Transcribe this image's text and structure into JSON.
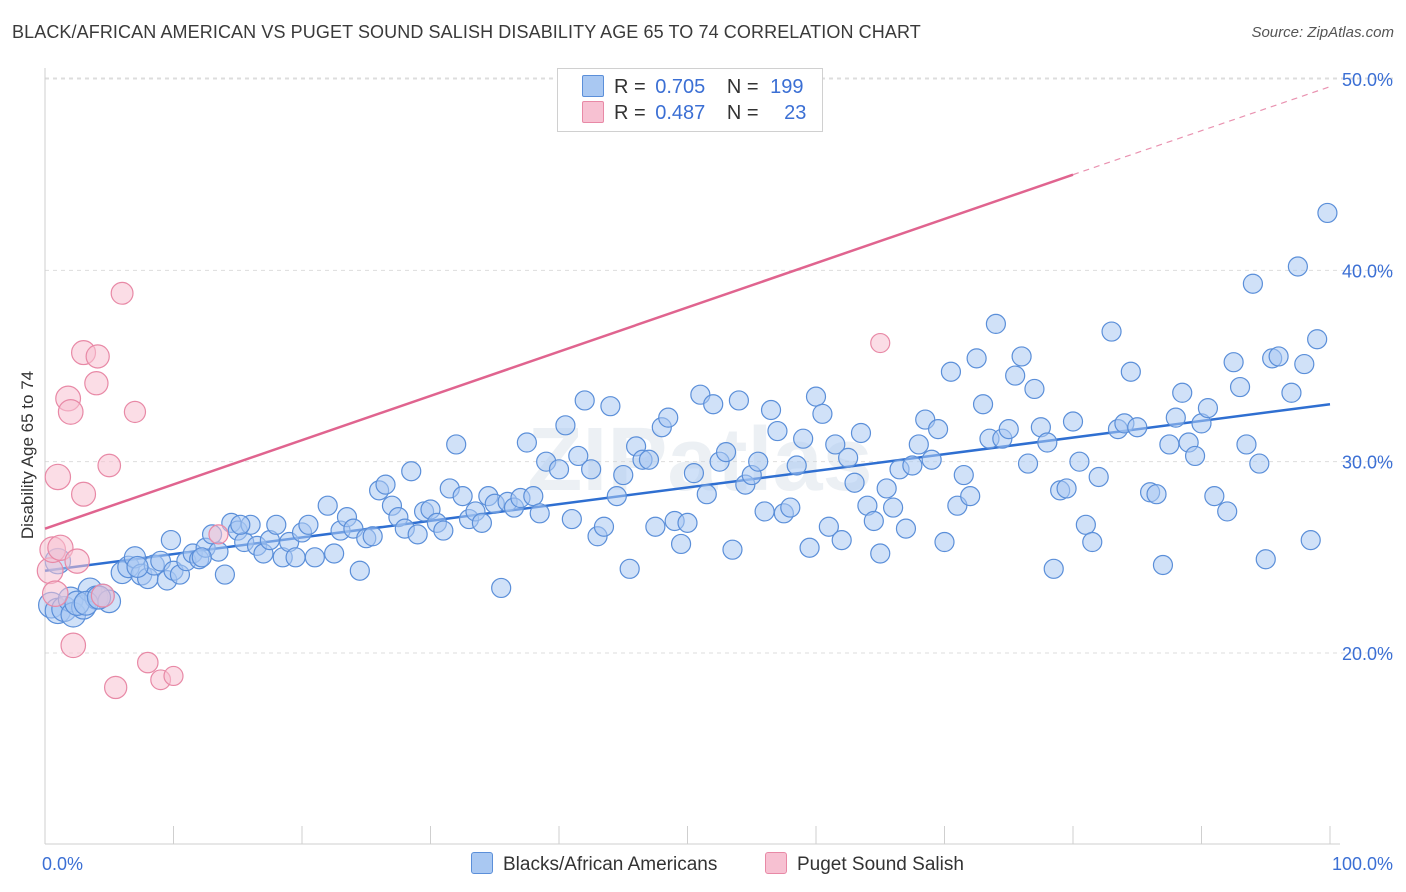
{
  "title": "BLACK/AFRICAN AMERICAN VS PUGET SOUND SALISH DISABILITY AGE 65 TO 74 CORRELATION CHART",
  "source": "Source: ZipAtlas.com",
  "watermark": "ZIPatlas",
  "colors": {
    "blue_fill": "#a9c8f2",
    "blue_stroke": "#5b8fd9",
    "blue_line": "#2f6fd1",
    "pink_fill": "#f7c1d2",
    "pink_stroke": "#e889a6",
    "pink_line": "#e0648f",
    "tick_label": "#3b6fd4"
  },
  "legend": {
    "row1": {
      "r_label": "R =",
      "r_value": "0.705",
      "n_label": "N =",
      "n_value": "199"
    },
    "row2": {
      "r_label": "R =",
      "r_value": "0.487",
      "n_label": "N =",
      "n_value": "23"
    }
  },
  "bottom_legend": {
    "blue": "Blacks/African Americans",
    "pink": "Puget Sound Salish"
  },
  "chart_data": {
    "type": "scatter",
    "title": "BLACK/AFRICAN AMERICAN VS PUGET SOUND SALISH DISABILITY AGE 65 TO 74 CORRELATION CHART",
    "xlabel": "",
    "ylabel": "Disability Age 65 to 74",
    "xlim": [
      0,
      100
    ],
    "ylim": [
      10,
      52
    ],
    "x_tick_labels": [
      "0.0%",
      "100.0%"
    ],
    "y_ticks": [
      20,
      30,
      40,
      50
    ],
    "y_tick_labels": [
      "20.0%",
      "30.0%",
      "40.0%",
      "50.0%"
    ],
    "grid": true,
    "legend_position": "top-center",
    "series": [
      {
        "name": "Blacks/African Americans",
        "R": 0.705,
        "N": 199,
        "trend": {
          "x0": 0,
          "y0": 24.3,
          "x1": 100,
          "y1": 33.0
        },
        "points": [
          [
            0.5,
            22.5
          ],
          [
            1,
            22.2
          ],
          [
            1.5,
            22.3
          ],
          [
            2,
            22.8
          ],
          [
            2.2,
            22.0
          ],
          [
            3,
            22.4
          ],
          [
            3.5,
            23.3
          ],
          [
            4,
            22.9
          ],
          [
            4.5,
            23.0
          ],
          [
            5,
            22.7
          ],
          [
            6,
            24.2
          ],
          [
            6.5,
            24.5
          ],
          [
            7,
            25.0
          ],
          [
            7.5,
            24.1
          ],
          [
            8,
            23.9
          ],
          [
            8.5,
            24.6
          ],
          [
            9,
            24.8
          ],
          [
            9.5,
            23.8
          ],
          [
            10,
            24.3
          ],
          [
            10.5,
            24.1
          ],
          [
            11,
            24.8
          ],
          [
            11.5,
            25.2
          ],
          [
            12,
            24.9
          ],
          [
            12.5,
            25.5
          ],
          [
            13,
            26.2
          ],
          [
            13.5,
            25.3
          ],
          [
            14,
            24.1
          ],
          [
            14.5,
            26.8
          ],
          [
            15,
            26.4
          ],
          [
            15.5,
            25.8
          ],
          [
            16,
            26.7
          ],
          [
            16.5,
            25.6
          ],
          [
            17,
            25.2
          ],
          [
            17.5,
            25.9
          ],
          [
            18,
            26.7
          ],
          [
            18.5,
            25.0
          ],
          [
            19,
            25.8
          ],
          [
            19.5,
            25.0
          ],
          [
            20,
            26.3
          ],
          [
            20.5,
            26.7
          ],
          [
            21,
            25.0
          ],
          [
            22,
            27.7
          ],
          [
            22.5,
            25.2
          ],
          [
            23,
            26.4
          ],
          [
            23.5,
            27.1
          ],
          [
            24,
            26.5
          ],
          [
            24.5,
            24.3
          ],
          [
            25,
            26.0
          ],
          [
            25.5,
            26.1
          ],
          [
            26,
            28.5
          ],
          [
            26.5,
            28.8
          ],
          [
            27,
            27.7
          ],
          [
            27.5,
            27.1
          ],
          [
            28,
            26.5
          ],
          [
            28.5,
            29.5
          ],
          [
            29,
            26.2
          ],
          [
            29.5,
            27.4
          ],
          [
            30,
            27.5
          ],
          [
            30.5,
            26.8
          ],
          [
            31,
            26.4
          ],
          [
            31.5,
            28.6
          ],
          [
            32,
            30.9
          ],
          [
            32.5,
            28.2
          ],
          [
            33,
            27.0
          ],
          [
            33.5,
            27.4
          ],
          [
            34,
            26.8
          ],
          [
            34.5,
            28.2
          ],
          [
            35,
            27.8
          ],
          [
            35.5,
            23.4
          ],
          [
            36,
            27.9
          ],
          [
            36.5,
            27.6
          ],
          [
            37,
            28.1
          ],
          [
            37.5,
            31.0
          ],
          [
            38,
            28.2
          ],
          [
            38.5,
            27.3
          ],
          [
            39,
            30.0
          ],
          [
            40,
            29.6
          ],
          [
            40.5,
            31.9
          ],
          [
            41,
            27.0
          ],
          [
            41.5,
            30.3
          ],
          [
            42,
            33.2
          ],
          [
            42.5,
            29.6
          ],
          [
            43,
            26.1
          ],
          [
            43.5,
            26.6
          ],
          [
            44,
            32.9
          ],
          [
            44.5,
            28.2
          ],
          [
            45,
            29.3
          ],
          [
            45.5,
            24.4
          ],
          [
            46,
            30.8
          ],
          [
            46.5,
            30.1
          ],
          [
            47,
            30.1
          ],
          [
            47.5,
            26.6
          ],
          [
            48,
            31.8
          ],
          [
            48.5,
            32.3
          ],
          [
            49,
            26.9
          ],
          [
            49.5,
            25.7
          ],
          [
            50,
            26.8
          ],
          [
            50.5,
            29.4
          ],
          [
            51,
            33.5
          ],
          [
            51.5,
            28.3
          ],
          [
            52,
            33.0
          ],
          [
            52.5,
            30.0
          ],
          [
            53,
            30.5
          ],
          [
            53.5,
            25.4
          ],
          [
            54,
            33.2
          ],
          [
            54.5,
            28.8
          ],
          [
            55,
            29.3
          ],
          [
            55.5,
            30.0
          ],
          [
            56,
            27.4
          ],
          [
            56.5,
            32.7
          ],
          [
            57,
            31.6
          ],
          [
            57.5,
            27.3
          ],
          [
            58,
            27.6
          ],
          [
            58.5,
            29.8
          ],
          [
            59,
            31.2
          ],
          [
            59.5,
            25.5
          ],
          [
            60,
            33.4
          ],
          [
            60.5,
            32.5
          ],
          [
            61,
            26.6
          ],
          [
            61.5,
            30.9
          ],
          [
            62,
            25.9
          ],
          [
            62.5,
            30.2
          ],
          [
            63,
            28.9
          ],
          [
            63.5,
            31.5
          ],
          [
            64,
            27.7
          ],
          [
            64.5,
            26.9
          ],
          [
            65,
            25.2
          ],
          [
            65.5,
            28.6
          ],
          [
            66,
            27.6
          ],
          [
            66.5,
            29.6
          ],
          [
            67,
            26.5
          ],
          [
            67.5,
            29.8
          ],
          [
            68,
            30.9
          ],
          [
            68.5,
            32.2
          ],
          [
            69,
            30.1
          ],
          [
            69.5,
            31.7
          ],
          [
            70,
            25.8
          ],
          [
            70.5,
            34.7
          ],
          [
            71,
            27.7
          ],
          [
            71.5,
            29.3
          ],
          [
            72,
            28.2
          ],
          [
            72.5,
            35.4
          ],
          [
            73,
            33.0
          ],
          [
            73.5,
            31.2
          ],
          [
            74,
            37.2
          ],
          [
            74.5,
            31.2
          ],
          [
            75,
            31.7
          ],
          [
            75.5,
            34.5
          ],
          [
            76,
            35.5
          ],
          [
            76.5,
            29.9
          ],
          [
            77,
            33.8
          ],
          [
            77.5,
            31.8
          ],
          [
            78,
            31.0
          ],
          [
            78.5,
            24.4
          ],
          [
            79,
            28.5
          ],
          [
            79.5,
            28.6
          ],
          [
            80,
            32.1
          ],
          [
            80.5,
            30.0
          ],
          [
            81,
            26.7
          ],
          [
            81.5,
            25.8
          ],
          [
            82,
            29.2
          ],
          [
            83,
            36.8
          ],
          [
            83.5,
            31.7
          ],
          [
            84,
            32.0
          ],
          [
            84.5,
            34.7
          ],
          [
            85,
            31.8
          ],
          [
            86,
            28.4
          ],
          [
            86.5,
            28.3
          ],
          [
            87,
            24.6
          ],
          [
            87.5,
            30.9
          ],
          [
            88,
            32.3
          ],
          [
            88.5,
            33.6
          ],
          [
            89,
            31.0
          ],
          [
            89.5,
            30.3
          ],
          [
            90,
            32.0
          ],
          [
            90.5,
            32.8
          ],
          [
            91,
            28.2
          ],
          [
            92,
            27.4
          ],
          [
            92.5,
            35.2
          ],
          [
            93,
            33.9
          ],
          [
            93.5,
            30.9
          ],
          [
            94,
            39.3
          ],
          [
            94.5,
            29.9
          ],
          [
            95,
            24.9
          ],
          [
            95.5,
            35.4
          ],
          [
            96,
            35.5
          ],
          [
            97,
            33.6
          ],
          [
            97.5,
            40.2
          ],
          [
            98,
            35.1
          ],
          [
            98.5,
            25.9
          ],
          [
            99,
            36.4
          ],
          [
            99.8,
            43.0
          ],
          [
            1,
            24.8
          ],
          [
            2.5,
            22.6
          ],
          [
            3.2,
            22.6
          ],
          [
            4.2,
            22.9
          ],
          [
            7.2,
            24.5
          ],
          [
            9.8,
            25.9
          ],
          [
            12.2,
            25.0
          ],
          [
            15.2,
            26.7
          ]
        ]
      },
      {
        "name": "Puget Sound Salish",
        "R": 0.487,
        "N": 23,
        "trend": {
          "x0": 0,
          "y0": 26.5,
          "x1": 80,
          "y1": 45.0,
          "dashed_to_x": 100,
          "dashed_to_y": 49.6
        },
        "points": [
          [
            0.4,
            24.3
          ],
          [
            0.6,
            25.4
          ],
          [
            1,
            29.2
          ],
          [
            1.2,
            25.5
          ],
          [
            1.8,
            33.3
          ],
          [
            2,
            32.6
          ],
          [
            2.2,
            20.4
          ],
          [
            2.5,
            24.8
          ],
          [
            3,
            28.3
          ],
          [
            3,
            35.7
          ],
          [
            4,
            34.1
          ],
          [
            4.1,
            35.5
          ],
          [
            4.5,
            23.0
          ],
          [
            5,
            29.8
          ],
          [
            5.5,
            18.2
          ],
          [
            6,
            38.8
          ],
          [
            7,
            32.6
          ],
          [
            8,
            19.5
          ],
          [
            9,
            18.6
          ],
          [
            10,
            18.8
          ],
          [
            13.5,
            26.2
          ],
          [
            65,
            36.2
          ],
          [
            0.8,
            23.1
          ]
        ]
      }
    ]
  }
}
